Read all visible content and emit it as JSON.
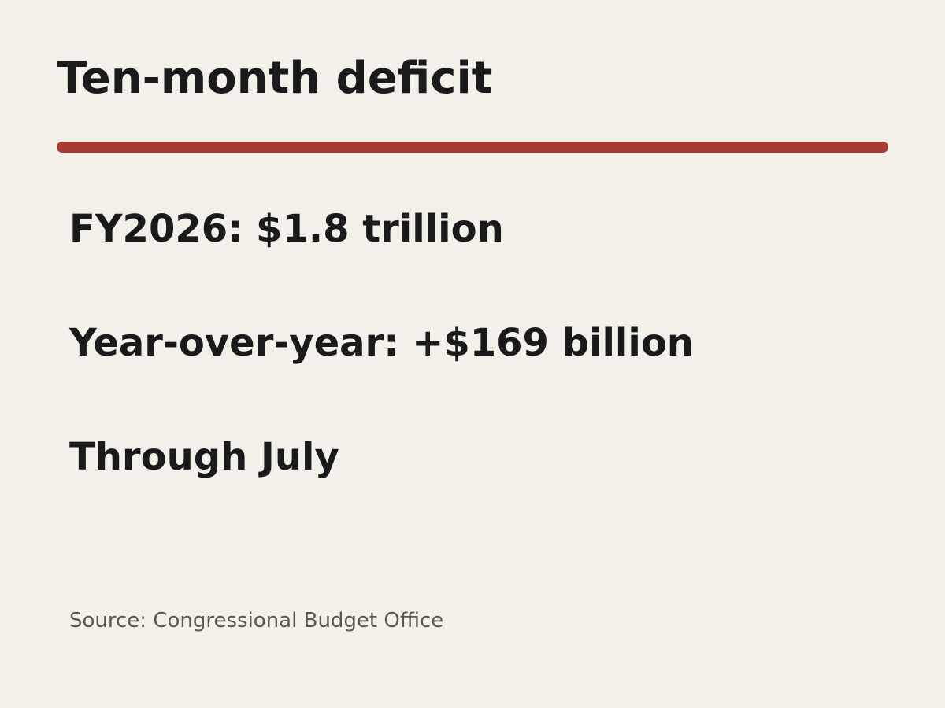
{
  "title": "Ten-month deficit",
  "colors": {
    "background": "#f3efe9",
    "accent_rule": "#a63b32",
    "text": "#1a1a1a",
    "source_text": "#5c5850"
  },
  "stats": [
    "FY2026: $1.8 trillion",
    "Year-over-year: +$169 billion",
    "Through July"
  ],
  "source": "Source: Congressional Budget Office"
}
